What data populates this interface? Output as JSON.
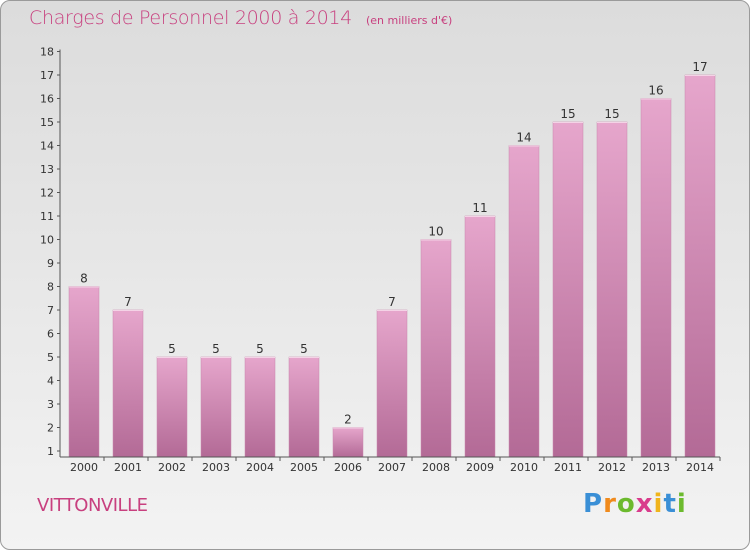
{
  "header": {
    "title": "Charges de Personnel 2000 à 2014",
    "unit": "(en milliers d'€)"
  },
  "footer": {
    "city": "VITTONVILLE",
    "logo_letters": [
      "P",
      "r",
      "o",
      "x",
      "i",
      "t",
      "i"
    ],
    "logo_colors": [
      "#3a8fd6",
      "#f08a1c",
      "#6cba2e",
      "#d93c8c",
      "#f0b41c",
      "#3a8fd6",
      "#6cba2e"
    ]
  },
  "colors": {
    "accent": "#c8407f",
    "bar_top": "#e6a6cc",
    "bar_bottom": "#b36a96"
  },
  "chart_data": {
    "type": "bar",
    "categories": [
      "2000",
      "2001",
      "2002",
      "2003",
      "2004",
      "2005",
      "2006",
      "2007",
      "2008",
      "2009",
      "2010",
      "2011",
      "2012",
      "2013",
      "2014"
    ],
    "values": [
      8,
      7,
      5,
      5,
      5,
      5,
      2,
      7,
      10,
      11,
      14,
      15,
      15,
      16,
      17
    ],
    "title": "Charges de Personnel 2000 à 2014",
    "xlabel": "",
    "ylabel": "",
    "ylim": [
      1,
      18
    ],
    "yticks": [
      1,
      2,
      3,
      4,
      5,
      6,
      7,
      8,
      9,
      10,
      11,
      12,
      13,
      14,
      15,
      16,
      17,
      18
    ],
    "grid": false,
    "data_labels": true
  }
}
